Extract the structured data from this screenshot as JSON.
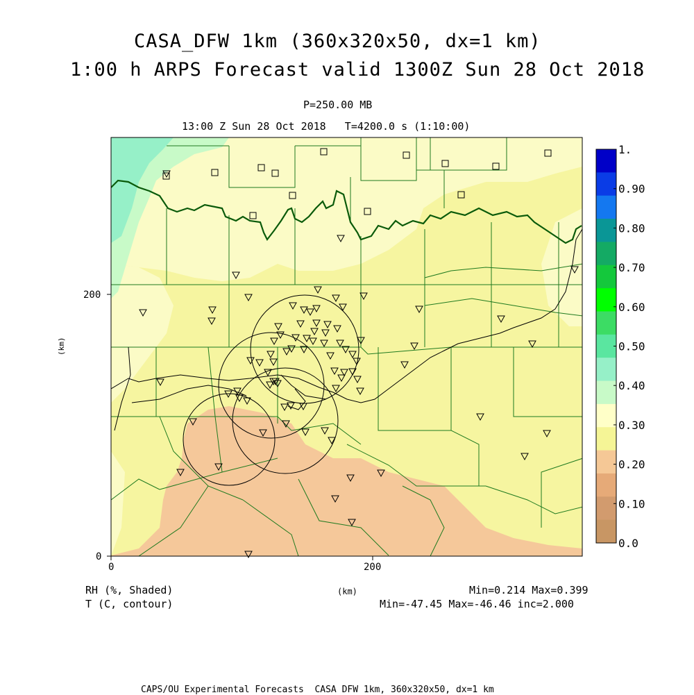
{
  "title_line1": "CASA_DFW 1km (360x320x50, dx=1 km)",
  "title_line2": "1:00 h ARPS Forecast valid 1300Z Sun 28 Oct 2018",
  "level": "P=250.00 MB",
  "time_line": "13:00 Z Sun 28 Oct 2018   T=4200.0 s (1:10:00)",
  "axes": {
    "x_label": "(km)",
    "y_label": "(km)",
    "x_ticks": [
      "0",
      "200"
    ],
    "y_ticks": [
      "0",
      "200"
    ],
    "x_range_km": [
      0,
      360
    ],
    "y_range_km": [
      0,
      320
    ]
  },
  "colorbar": {
    "labels": [
      "1.",
      "0.90",
      "0.80",
      "0.70",
      "0.60",
      "0.50",
      "0.40",
      "0.30",
      "0.20",
      "0.10",
      "0.0"
    ],
    "colors": [
      "#0000c8",
      "#0a3ce6",
      "#1478f0",
      "#0a9696",
      "#14aa64",
      "#14c83c",
      "#00ff00",
      "#3cdc64",
      "#5ae6a0",
      "#96f0c8",
      "#c8fac8",
      "#ffffc8",
      "#f5f596",
      "#f5c896",
      "#e6aa78",
      "#d29b6e",
      "#c89664"
    ]
  },
  "field_colors": {
    "rh_25_30": "#f6f5a0",
    "rh_30_35": "#fbfbc6",
    "rh_35_40": "#c8fac8",
    "rh_40_45": "#96f0c8",
    "rh_20_25": "#f5c89a"
  },
  "legend": {
    "shaded": "RH (%, Shaded)",
    "contour": "T (C, contour)",
    "xunit": "(km)",
    "shaded_minmax": "Min=0.214 Max=0.399",
    "contour_minmax": "Min=-47.45 Max=-46.46 inc=2.000"
  },
  "footer": "CAPS/OU Experimental Forecasts  CASA DFW 1km, 360x320x50, dx=1 km"
}
